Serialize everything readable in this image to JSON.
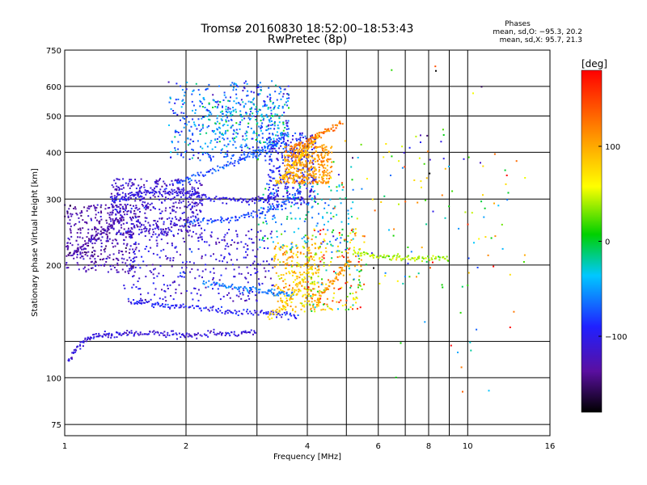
{
  "header": {
    "title_line1": "Tromsø 20160830 18:52:00–18:53:43",
    "title_line2": "RwPretec (8p)"
  },
  "stats": {
    "heading": "Phases",
    "line_o": "mean, sd,O: −95.3, 20.2",
    "line_x": "mean, sd,X:  95.7, 21.3"
  },
  "colorbar": {
    "unit": "[deg]",
    "min": -180,
    "max": 180,
    "ticks": [
      {
        "value": 100,
        "label": "100"
      },
      {
        "value": 0,
        "label": "0"
      },
      {
        "value": -100,
        "label": "−100"
      }
    ]
  },
  "chart_data": {
    "type": "scatter",
    "title": "Tromsø 20160830 18:52:00–18:53:43",
    "subtitle": "RwPretec (8p)",
    "xlabel": "Frequency [MHz]",
    "ylabel": "Stationary phase Virtual Height [km]",
    "xscale": "log",
    "yscale": "log",
    "xlim": [
      1,
      16
    ],
    "ylim": [
      70,
      750
    ],
    "x_ticks": [
      {
        "value": 1,
        "label": "1"
      },
      {
        "value": 2,
        "label": "2"
      },
      {
        "value": 4,
        "label": "4"
      },
      {
        "value": 6,
        "label": "6"
      },
      {
        "value": 8,
        "label": "8"
      },
      {
        "value": 10,
        "label": "10"
      },
      {
        "value": 16,
        "label": "16"
      }
    ],
    "x_minor_grid": [
      3,
      5,
      7,
      9
    ],
    "y_ticks": [
      {
        "value": 75,
        "label": "75"
      },
      {
        "value": 100,
        "label": "100"
      },
      {
        "value": 200,
        "label": "200"
      },
      {
        "value": 300,
        "label": "300"
      },
      {
        "value": 400,
        "label": "400"
      },
      {
        "value": 500,
        "label": "500"
      },
      {
        "value": 600,
        "label": "600"
      },
      {
        "value": 750,
        "label": "750"
      }
    ],
    "y_extra_grid": [
      125
    ],
    "grid": true,
    "color_metric": "phase [deg]",
    "series": [
      {
        "name": "O",
        "phase_mean": -95.3,
        "phase_sd": 20.2
      },
      {
        "name": "X",
        "phase_mean": 95.7,
        "phase_sd": 21.3
      }
    ],
    "traces": [
      {
        "x": [
          1.02,
          1.08,
          1.15,
          1.25,
          1.35,
          1.5,
          1.7,
          1.9,
          2.1,
          2.4,
          2.7,
          3.0
        ],
        "y": [
          110,
          122,
          128,
          130,
          131,
          132,
          131,
          130,
          130,
          131,
          132,
          133
        ],
        "phase": -110
      },
      {
        "x": [
          1.45,
          1.6,
          1.8,
          2.0,
          2.3,
          2.6,
          3.0,
          3.4,
          3.8
        ],
        "y": [
          160,
          158,
          156,
          155,
          152,
          150,
          149,
          148,
          147
        ],
        "phase": -95
      },
      {
        "x": [
          1.05,
          1.12,
          1.2,
          1.3,
          1.4
        ],
        "y": [
          215,
          225,
          238,
          255,
          270
        ],
        "phase": -130
      },
      {
        "x": [
          1.3,
          1.45,
          1.6,
          1.8,
          2.0,
          2.2,
          2.5,
          2.8,
          3.1,
          3.4
        ],
        "y": [
          300,
          305,
          312,
          315,
          310,
          305,
          300,
          297,
          300,
          305
        ],
        "phase": -105
      },
      {
        "x": [
          2.0,
          2.3,
          2.6,
          2.9,
          3.2,
          3.5,
          3.8
        ],
        "y": [
          260,
          262,
          266,
          272,
          280,
          292,
          310
        ],
        "phase": -80
      },
      {
        "x": [
          1.9,
          2.1,
          2.4,
          2.7,
          3.0,
          3.3,
          3.6
        ],
        "y": [
          330,
          345,
          360,
          380,
          400,
          420,
          450
        ],
        "phase": -75
      },
      {
        "x": [
          2.2,
          2.5,
          2.8,
          3.1,
          3.4,
          3.7
        ],
        "y": [
          180,
          176,
          172,
          170,
          168,
          166
        ],
        "phase": -60
      },
      {
        "x": [
          3.35,
          3.5,
          3.7,
          3.9,
          4.1,
          4.3
        ],
        "y": [
          330,
          345,
          370,
          395,
          420,
          450
        ],
        "phase": 90
      },
      {
        "x": [
          3.6,
          3.9,
          4.2,
          4.5,
          4.9
        ],
        "y": [
          410,
          420,
          440,
          460,
          480
        ],
        "phase": 125
      },
      {
        "x": [
          3.2,
          3.5,
          3.8,
          4.1
        ],
        "y": [
          145,
          155,
          175,
          200
        ],
        "phase": 80
      },
      {
        "x": [
          4.2,
          4.5,
          4.8,
          5.1
        ],
        "y": [
          160,
          175,
          190,
          205
        ],
        "phase": 105
      },
      {
        "x": [
          5.2,
          5.8,
          6.5,
          7.2,
          8.0,
          9.0
        ],
        "y": [
          215,
          212,
          210,
          208,
          208,
          207
        ],
        "phase": 40
      }
    ],
    "scatter_regions": [
      {
        "x_range": [
          1.0,
          1.5
        ],
        "y_range": [
          190,
          290
        ],
        "n": 350,
        "phase_mean": -130,
        "phase_sd": 12
      },
      {
        "x_range": [
          1.3,
          2.2
        ],
        "y_range": [
          240,
          340
        ],
        "n": 450,
        "phase_mean": -115,
        "phase_sd": 12
      },
      {
        "x_range": [
          1.4,
          3.3
        ],
        "y_range": [
          160,
          250
        ],
        "n": 350,
        "phase_mean": -110,
        "phase_sd": 15
      },
      {
        "x_range": [
          1.8,
          3.6
        ],
        "y_range": [
          380,
          620
        ],
        "n": 450,
        "phase_mean": -70,
        "phase_sd": 25
      },
      {
        "x_range": [
          2.2,
          3.6
        ],
        "y_range": [
          420,
          560
        ],
        "n": 150,
        "phase_mean": -30,
        "phase_sd": 25
      },
      {
        "x_range": [
          3.2,
          4.2
        ],
        "y_range": [
          290,
          450
        ],
        "n": 300,
        "phase_mean": -100,
        "phase_sd": 15
      },
      {
        "x_range": [
          3.5,
          4.6
        ],
        "y_range": [
          330,
          420
        ],
        "n": 350,
        "phase_mean": 110,
        "phase_sd": 15
      },
      {
        "x_range": [
          3.3,
          4.3
        ],
        "y_range": [
          150,
          230
        ],
        "n": 250,
        "phase_mean": 90,
        "phase_sd": 25
      },
      {
        "x_range": [
          3.0,
          5.2
        ],
        "y_range": [
          220,
          330
        ],
        "n": 150,
        "phase_mean": -40,
        "phase_sd": 30
      },
      {
        "x_range": [
          4.0,
          5.5
        ],
        "y_range": [
          150,
          250
        ],
        "n": 200,
        "phase_mean": 70,
        "phase_sd": 60
      },
      {
        "x_range": [
          4.6,
          13.0
        ],
        "y_range": [
          170,
          450
        ],
        "n": 110,
        "phase_mean": 30,
        "phase_sd": 90
      },
      {
        "x_range": [
          6.0,
          14.0
        ],
        "y_range": [
          80,
          700
        ],
        "n": 40,
        "phase_mean": 0,
        "phase_sd": 100
      }
    ]
  }
}
